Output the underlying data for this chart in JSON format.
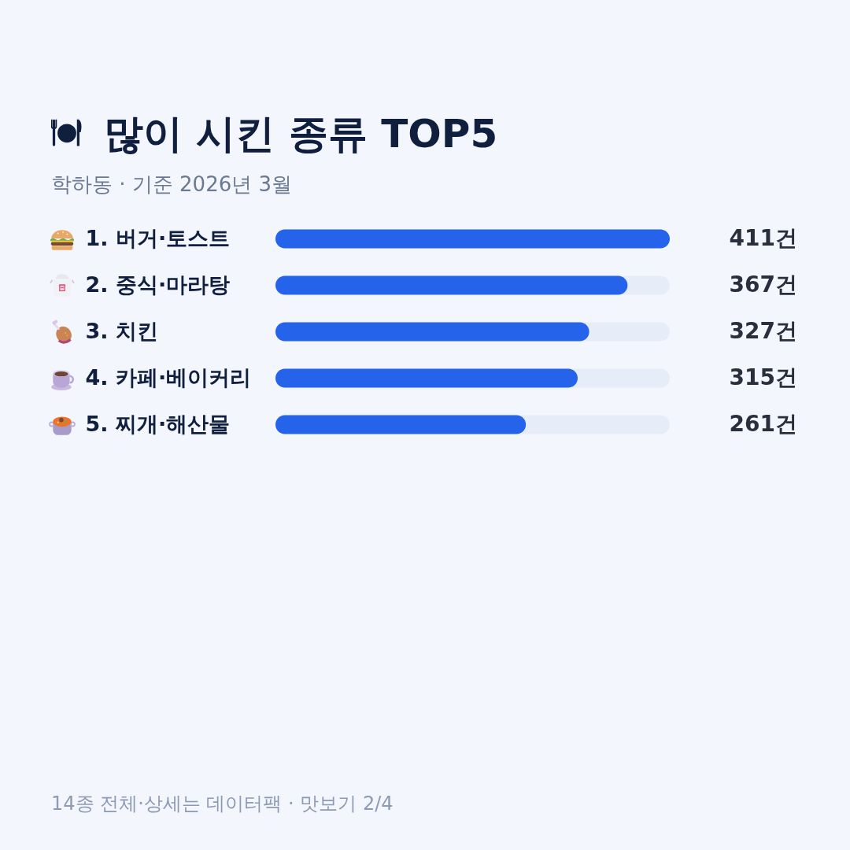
{
  "chart_data": {
    "type": "bar",
    "orientation": "horizontal",
    "title": "많이 시킨 종류 TOP5",
    "subtitle": "학하동 · 기준 2026년 3월",
    "categories": [
      "1. 버거·토스트",
      "2. 중식·마라탕",
      "3. 치킨",
      "4. 카페·베이커리",
      "5. 찌개·해산물"
    ],
    "values": [
      411,
      367,
      327,
      315,
      261
    ],
    "value_labels": [
      "411건",
      "367건",
      "327건",
      "315건",
      "261건"
    ],
    "color": "#2563eb",
    "xlim": [
      0,
      411
    ],
    "tick_labels": "y",
    "annotations": [
      "14종 전체·상세는 데이터팩 · 맛보기 2/4"
    ]
  }
}
